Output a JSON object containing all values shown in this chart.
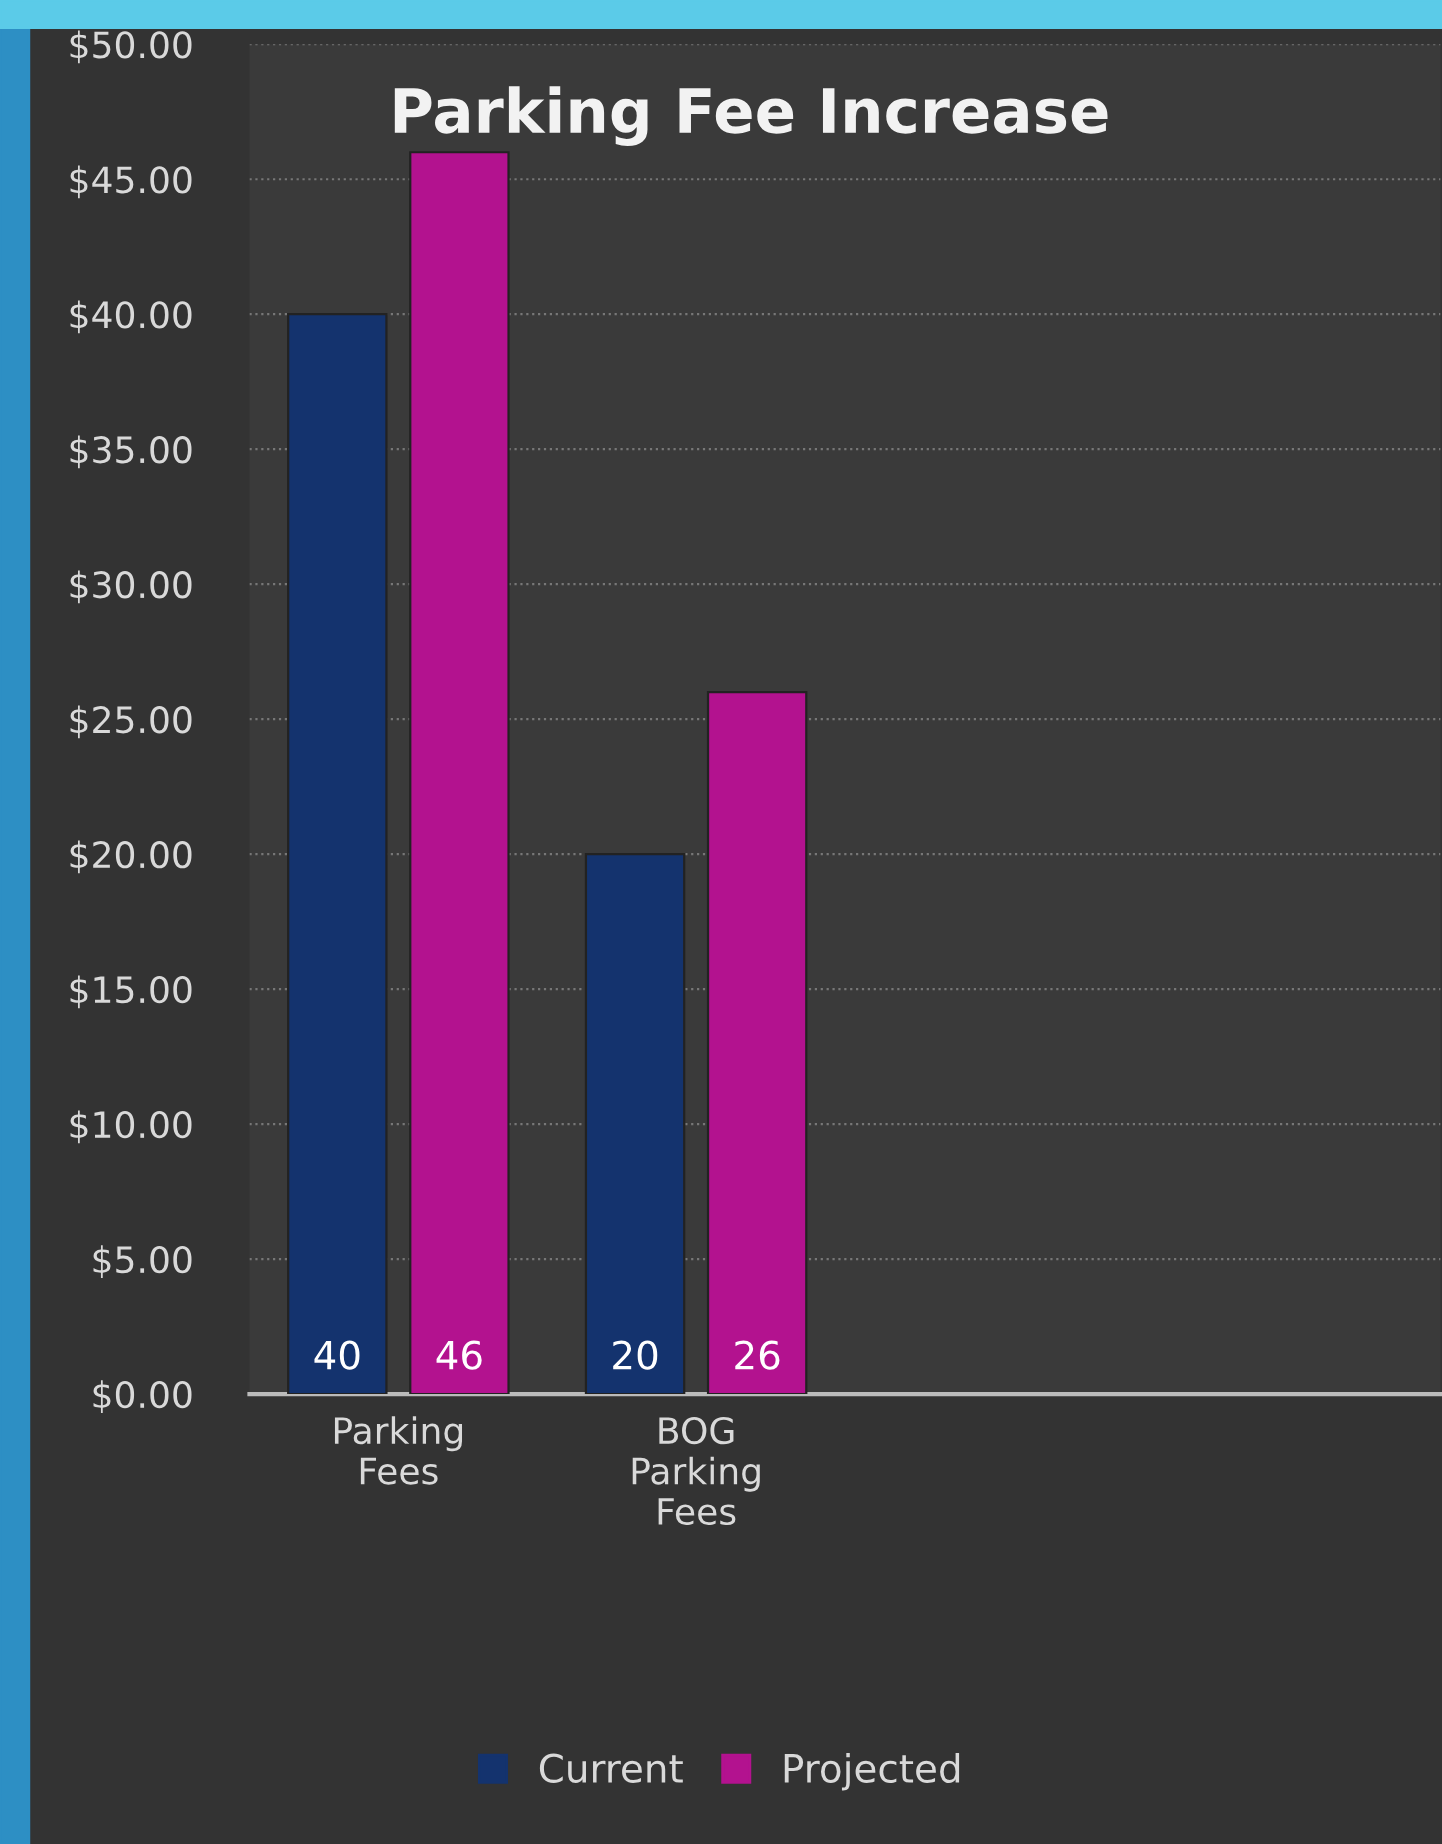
{
  "chart_data": {
    "type": "bar",
    "title": "Parking Fee Increase",
    "categories": [
      "Parking Fees",
      "BOG Parking Fees",
      null,
      null
    ],
    "series": [
      {
        "name": "Current",
        "color": "#14336e",
        "values": [
          40,
          20,
          null,
          null
        ]
      },
      {
        "name": "Projected",
        "color": "#b3128f",
        "values": [
          46,
          26,
          null,
          null
        ]
      }
    ],
    "ylim": [
      0,
      50
    ],
    "yticks": [
      {
        "value": 0,
        "label": "$0.00"
      },
      {
        "value": 5,
        "label": "$5.00"
      },
      {
        "value": 10,
        "label": "$10.00"
      },
      {
        "value": 15,
        "label": "$15.00"
      },
      {
        "value": 20,
        "label": "$20.00"
      },
      {
        "value": 25,
        "label": "$25.00"
      },
      {
        "value": 30,
        "label": "$30.00"
      },
      {
        "value": 35,
        "label": "$35.00"
      },
      {
        "value": 40,
        "label": "$40.00"
      },
      {
        "value": 45,
        "label": "$45.00"
      },
      {
        "value": 50,
        "label": "$50.00"
      }
    ],
    "grid": "y",
    "legend": "bottom",
    "data_labels": true
  }
}
